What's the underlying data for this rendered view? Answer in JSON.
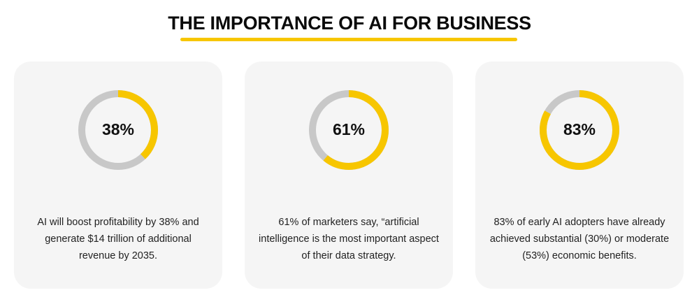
{
  "title": "THE IMPORTANCE OF AI FOR BUSINESS",
  "colors": {
    "accent": "#f7c600",
    "track": "#c8c8c8",
    "card": "#f5f5f5"
  },
  "cards": [
    {
      "value": 38,
      "label": "38%",
      "text": "AI will boost profitability by 38% and generate $14 trillion of additional revenue by 2035."
    },
    {
      "value": 61,
      "label": "61%",
      "text": "61% of marketers say, “artificial intelligence is the most important aspect of their data strategy."
    },
    {
      "value": 83,
      "label": "83%",
      "text": "83% of early AI adopters have already achieved substantial (30%) or moderate (53%) economic benefits."
    }
  ]
}
